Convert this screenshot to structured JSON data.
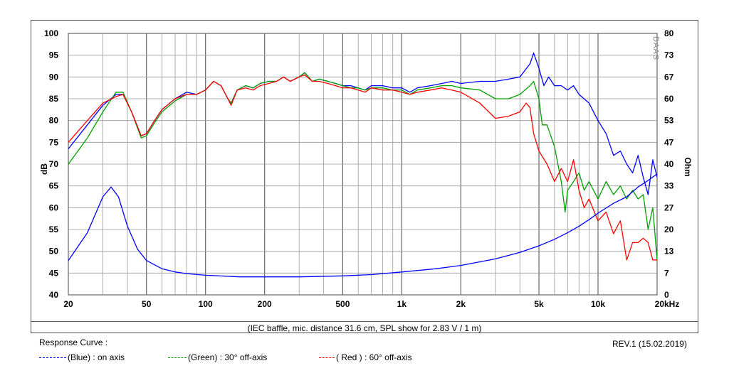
{
  "chart_data": {
    "type": "line",
    "x_scale": "log",
    "xlim": [
      20,
      20000
    ],
    "xlabel": "",
    "x_ticks": [
      20,
      50,
      100,
      200,
      500,
      1000,
      2000,
      5000,
      10000,
      20000
    ],
    "x_tick_labels": [
      "20",
      "50",
      "100",
      "200",
      "500",
      "1k",
      "2k",
      "5k",
      "10k",
      "20kHz"
    ],
    "ylabel": "dB",
    "ylim": [
      40,
      100
    ],
    "y_ticks": [
      40,
      45,
      50,
      55,
      60,
      65,
      70,
      75,
      80,
      85,
      90,
      95,
      100
    ],
    "y2label": "Ohm",
    "y2lim": [
      0,
      80
    ],
    "y2_tick_labels": [
      "0",
      "7",
      "13",
      "20",
      "27",
      "33",
      "40",
      "47",
      "53",
      "60",
      "67",
      "73",
      "80"
    ],
    "grid": true,
    "watermark": "DAAS",
    "series": [
      {
        "name": "(Blue)  : on axis",
        "color": "#0000ff",
        "axis": "left",
        "points": [
          [
            20,
            73.5
          ],
          [
            25,
            79
          ],
          [
            30,
            83.5
          ],
          [
            35,
            86
          ],
          [
            38,
            86
          ],
          [
            42,
            82
          ],
          [
            47,
            76.5
          ],
          [
            50,
            77
          ],
          [
            55,
            80
          ],
          [
            60,
            82.5
          ],
          [
            70,
            85
          ],
          [
            80,
            86.5
          ],
          [
            90,
            86
          ],
          [
            100,
            87
          ],
          [
            110,
            89
          ],
          [
            120,
            88
          ],
          [
            130,
            85
          ],
          [
            135,
            84
          ],
          [
            145,
            87
          ],
          [
            160,
            88
          ],
          [
            175,
            87.5
          ],
          [
            190,
            88.5
          ],
          [
            210,
            89
          ],
          [
            230,
            89
          ],
          [
            250,
            90
          ],
          [
            270,
            89
          ],
          [
            300,
            90
          ],
          [
            320,
            91
          ],
          [
            350,
            89
          ],
          [
            380,
            89.5
          ],
          [
            420,
            89
          ],
          [
            460,
            88.5
          ],
          [
            500,
            88
          ],
          [
            550,
            88
          ],
          [
            600,
            87.5
          ],
          [
            650,
            87
          ],
          [
            700,
            88
          ],
          [
            800,
            88
          ],
          [
            900,
            87.5
          ],
          [
            1000,
            87.5
          ],
          [
            1100,
            86.5
          ],
          [
            1200,
            87.5
          ],
          [
            1400,
            88
          ],
          [
            1600,
            88.5
          ],
          [
            1800,
            89
          ],
          [
            2000,
            88.5
          ],
          [
            2500,
            89
          ],
          [
            3000,
            89
          ],
          [
            3500,
            89.5
          ],
          [
            4000,
            90
          ],
          [
            4500,
            93
          ],
          [
            4700,
            95.5
          ],
          [
            5000,
            92
          ],
          [
            5300,
            88
          ],
          [
            5600,
            90
          ],
          [
            6000,
            88
          ],
          [
            6500,
            88
          ],
          [
            7000,
            87
          ],
          [
            7500,
            88
          ],
          [
            8000,
            86
          ],
          [
            9000,
            84
          ],
          [
            10000,
            80
          ],
          [
            11000,
            77
          ],
          [
            12000,
            72
          ],
          [
            13000,
            73
          ],
          [
            14000,
            70
          ],
          [
            15000,
            68
          ],
          [
            16000,
            72
          ],
          [
            17000,
            67
          ],
          [
            18000,
            63
          ],
          [
            19000,
            71
          ],
          [
            20000,
            67
          ]
        ]
      },
      {
        "name": "(Green) : 30° off-axis",
        "color": "#00a000",
        "axis": "left",
        "points": [
          [
            20,
            70
          ],
          [
            25,
            76
          ],
          [
            30,
            82
          ],
          [
            35,
            86.5
          ],
          [
            38,
            86.5
          ],
          [
            42,
            82
          ],
          [
            47,
            76
          ],
          [
            50,
            76.5
          ],
          [
            55,
            79.5
          ],
          [
            60,
            82
          ],
          [
            70,
            84.5
          ],
          [
            80,
            86
          ],
          [
            90,
            86
          ],
          [
            100,
            87
          ],
          [
            110,
            89
          ],
          [
            120,
            88
          ],
          [
            130,
            85
          ],
          [
            135,
            84
          ],
          [
            145,
            87
          ],
          [
            160,
            88
          ],
          [
            175,
            87.5
          ],
          [
            190,
            88.5
          ],
          [
            210,
            89
          ],
          [
            230,
            89
          ],
          [
            250,
            90
          ],
          [
            270,
            89
          ],
          [
            300,
            90
          ],
          [
            320,
            91
          ],
          [
            350,
            89
          ],
          [
            380,
            89.5
          ],
          [
            420,
            89
          ],
          [
            460,
            88.5
          ],
          [
            500,
            88
          ],
          [
            550,
            87.5
          ],
          [
            600,
            87.5
          ],
          [
            650,
            87
          ],
          [
            700,
            87.5
          ],
          [
            800,
            87.5
          ],
          [
            900,
            87
          ],
          [
            1000,
            87
          ],
          [
            1100,
            86
          ],
          [
            1200,
            87
          ],
          [
            1400,
            87.5
          ],
          [
            1600,
            88
          ],
          [
            1800,
            88
          ],
          [
            2000,
            87.5
          ],
          [
            2500,
            87
          ],
          [
            3000,
            85
          ],
          [
            3500,
            85
          ],
          [
            4000,
            86
          ],
          [
            4500,
            88
          ],
          [
            4700,
            89
          ],
          [
            5000,
            85
          ],
          [
            5200,
            79
          ],
          [
            5500,
            79
          ],
          [
            6000,
            74
          ],
          [
            6500,
            66
          ],
          [
            6800,
            59
          ],
          [
            7000,
            64
          ],
          [
            7500,
            66
          ],
          [
            8000,
            68
          ],
          [
            8500,
            64
          ],
          [
            9000,
            66
          ],
          [
            10000,
            62
          ],
          [
            11000,
            66
          ],
          [
            12000,
            63
          ],
          [
            13000,
            65
          ],
          [
            14000,
            62
          ],
          [
            15000,
            64
          ],
          [
            16000,
            62
          ],
          [
            17000,
            63
          ],
          [
            18000,
            55
          ],
          [
            19000,
            60
          ],
          [
            20000,
            48
          ]
        ]
      },
      {
        "name": "( Red ) : 60° off-axis",
        "color": "#ff0000",
        "axis": "left",
        "points": [
          [
            20,
            75
          ],
          [
            25,
            80
          ],
          [
            30,
            84
          ],
          [
            35,
            85.5
          ],
          [
            38,
            86
          ],
          [
            42,
            82
          ],
          [
            47,
            76.5
          ],
          [
            50,
            77
          ],
          [
            55,
            80
          ],
          [
            60,
            82.5
          ],
          [
            70,
            85
          ],
          [
            80,
            86
          ],
          [
            90,
            86
          ],
          [
            100,
            87
          ],
          [
            110,
            89
          ],
          [
            120,
            88
          ],
          [
            130,
            85
          ],
          [
            135,
            83.5
          ],
          [
            145,
            87
          ],
          [
            160,
            87.5
          ],
          [
            175,
            87
          ],
          [
            190,
            88
          ],
          [
            210,
            88.5
          ],
          [
            230,
            89
          ],
          [
            250,
            90
          ],
          [
            270,
            89
          ],
          [
            300,
            90
          ],
          [
            320,
            90.5
          ],
          [
            350,
            89
          ],
          [
            380,
            89
          ],
          [
            420,
            88.5
          ],
          [
            460,
            88
          ],
          [
            500,
            87.5
          ],
          [
            550,
            87.5
          ],
          [
            600,
            87
          ],
          [
            650,
            86.5
          ],
          [
            700,
            87.5
          ],
          [
            800,
            87
          ],
          [
            900,
            87
          ],
          [
            1000,
            86.5
          ],
          [
            1100,
            86
          ],
          [
            1200,
            86.5
          ],
          [
            1400,
            87
          ],
          [
            1600,
            87.5
          ],
          [
            1800,
            87
          ],
          [
            2000,
            86.5
          ],
          [
            2500,
            84
          ],
          [
            3000,
            80.5
          ],
          [
            3500,
            81
          ],
          [
            4000,
            82
          ],
          [
            4300,
            84
          ],
          [
            4500,
            83
          ],
          [
            4700,
            77
          ],
          [
            5000,
            73
          ],
          [
            5500,
            70
          ],
          [
            6000,
            66
          ],
          [
            6500,
            69
          ],
          [
            7000,
            66
          ],
          [
            7500,
            71
          ],
          [
            8000,
            64
          ],
          [
            8500,
            60
          ],
          [
            9000,
            62
          ],
          [
            10000,
            57
          ],
          [
            11000,
            59
          ],
          [
            12000,
            54
          ],
          [
            13000,
            57
          ],
          [
            14000,
            48
          ],
          [
            15000,
            52
          ],
          [
            16000,
            52
          ],
          [
            17000,
            53
          ],
          [
            18000,
            52
          ],
          [
            19000,
            48
          ],
          [
            20000,
            48
          ]
        ]
      },
      {
        "name": "impedance",
        "color": "#0000ff",
        "axis": "right",
        "points": [
          [
            20,
            10.5
          ],
          [
            25,
            19
          ],
          [
            30,
            30
          ],
          [
            33,
            33
          ],
          [
            36,
            30
          ],
          [
            40,
            21
          ],
          [
            45,
            14
          ],
          [
            50,
            10.5
          ],
          [
            60,
            8
          ],
          [
            70,
            7
          ],
          [
            80,
            6.5
          ],
          [
            100,
            6
          ],
          [
            150,
            5.5
          ],
          [
            200,
            5.5
          ],
          [
            300,
            5.5
          ],
          [
            500,
            5.8
          ],
          [
            700,
            6.2
          ],
          [
            1000,
            7
          ],
          [
            1500,
            8
          ],
          [
            2000,
            9
          ],
          [
            3000,
            11
          ],
          [
            4000,
            13
          ],
          [
            5000,
            15
          ],
          [
            6000,
            17
          ],
          [
            7000,
            19
          ],
          [
            8000,
            21
          ],
          [
            9000,
            23
          ],
          [
            10000,
            25
          ],
          [
            12000,
            28
          ],
          [
            14000,
            30
          ],
          [
            16000,
            33
          ],
          [
            18000,
            35
          ],
          [
            20000,
            37
          ]
        ]
      }
    ]
  },
  "caption": "(IEC baffle, mic. distance 31.6 cm, SPL show for 2.83 V / 1 m)",
  "footer": {
    "title": "Response Curve :",
    "revision": "REV.1 (15.02.2019)",
    "legend": {
      "blue": "(Blue)  : on axis",
      "green": "(Green) : 30° off-axis",
      "red": "( Red ) : 60° off-axis"
    }
  }
}
